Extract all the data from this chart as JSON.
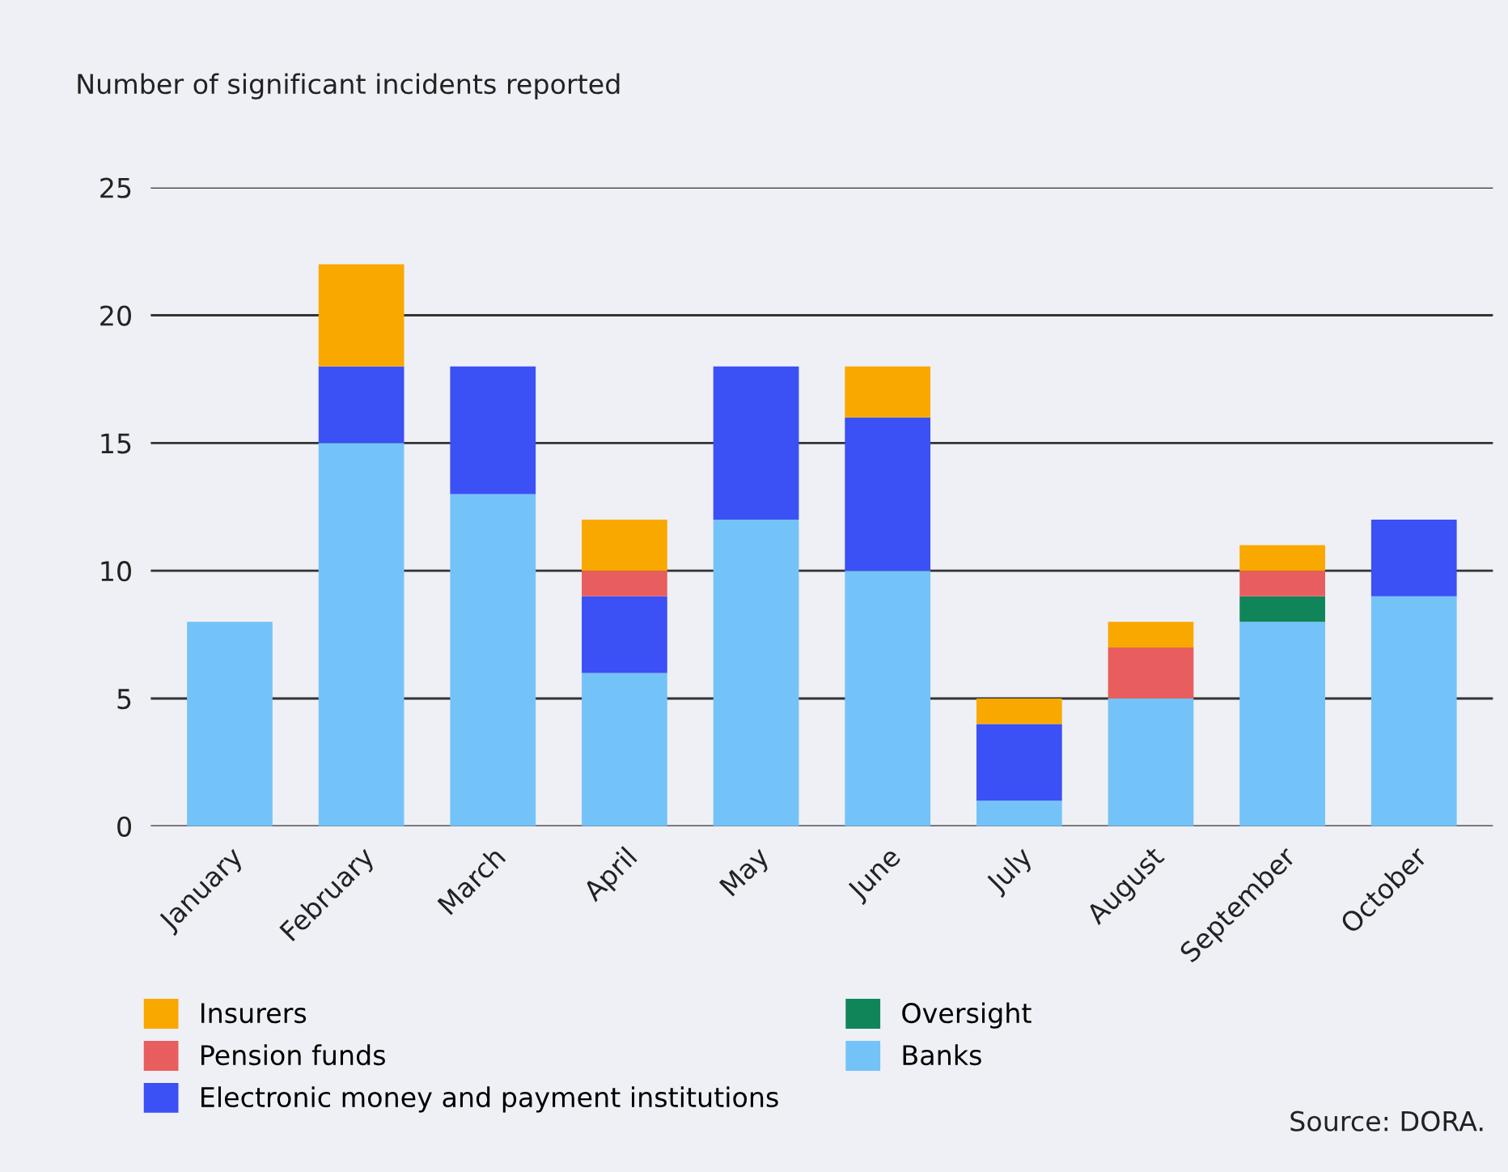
{
  "chart_data": {
    "type": "bar",
    "stacked": true,
    "title": "Number of significant incidents reported",
    "categories": [
      "January",
      "February",
      "March",
      "April",
      "May",
      "June",
      "July",
      "August",
      "September",
      "October"
    ],
    "series": [
      {
        "name": "Banks",
        "color": "#73c3f9",
        "values": [
          8,
          15,
          13,
          6,
          12,
          10,
          1,
          5,
          8,
          9
        ]
      },
      {
        "name": "Oversight",
        "color": "#10855a",
        "values": [
          null,
          null,
          null,
          null,
          null,
          null,
          null,
          null,
          1,
          null
        ]
      },
      {
        "name": "Electronic money and payment institutions",
        "color": "#3b50f5",
        "values": [
          null,
          3,
          5,
          3,
          6,
          6,
          3,
          null,
          null,
          3
        ]
      },
      {
        "name": "Pension funds",
        "color": "#e85e5e",
        "values": [
          null,
          null,
          null,
          1,
          null,
          null,
          null,
          2,
          1,
          null
        ]
      },
      {
        "name": "Insurers",
        "color": "#f9a800",
        "values": [
          null,
          4,
          null,
          2,
          null,
          2,
          1,
          1,
          1,
          null
        ]
      }
    ],
    "ylim": [
      0,
      25
    ],
    "yticks": [
      0,
      5,
      10,
      15,
      20,
      25
    ],
    "grid": "y",
    "legend": "bottom",
    "annotations": [
      "Source: DORA."
    ]
  }
}
